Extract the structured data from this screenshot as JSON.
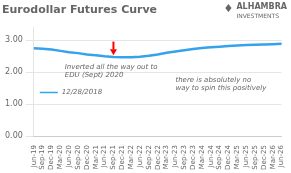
{
  "chart_data": {
    "type": "line",
    "title": "Eurodollar Futures Curve",
    "categories": [
      "Jun-19",
      "Sep-19",
      "Dec-19",
      "Mar-20",
      "Jun-20",
      "Sep-20",
      "Dec-20",
      "Mar-21",
      "Jun-21",
      "Sep-21",
      "Dec-21",
      "Mar-22",
      "Jun-22",
      "Sep-22",
      "Dec-22",
      "Mar-23",
      "Jun-23",
      "Sep-23",
      "Dec-23",
      "Mar-24",
      "Jun-24",
      "Sep-24",
      "Dec-24",
      "Mar-25",
      "Jun-25",
      "Sep-25",
      "Dec-25",
      "Mar-26",
      "Jun-26"
    ],
    "series": [
      {
        "name": "12/28/2018",
        "values": [
          2.74,
          2.73,
          2.7,
          2.66,
          2.62,
          2.59,
          2.55,
          2.52,
          2.49,
          2.47,
          2.46,
          2.46,
          2.48,
          2.51,
          2.55,
          2.6,
          2.64,
          2.68,
          2.72,
          2.75,
          2.77,
          2.79,
          2.81,
          2.83,
          2.84,
          2.85,
          2.86,
          2.87,
          2.88
        ]
      }
    ],
    "ylim": [
      0.0,
      3.4
    ],
    "yticks": [
      {
        "value": 0,
        "label": "0.00"
      },
      {
        "value": 1,
        "label": "1.00"
      },
      {
        "value": 2,
        "label": "2.00"
      },
      {
        "value": 3,
        "label": "3.00"
      }
    ],
    "grid": true,
    "legend": "lower left",
    "annotations": [
      {
        "x": 9,
        "y": 2.52,
        "y_from": 2.95,
        "color": "red"
      },
      {
        "text": "Inverted all the way out to\nEDU (Sept) 2020",
        "x": 3.5,
        "y": 2.25
      },
      {
        "text": "there is absolutely no\nway to spin this positively",
        "x": 16,
        "y": 1.85
      },
      {
        "text": "♦"
      },
      {
        "text": "ALHAMBRA"
      },
      {
        "text": "INVESTMENTS"
      }
    ]
  }
}
